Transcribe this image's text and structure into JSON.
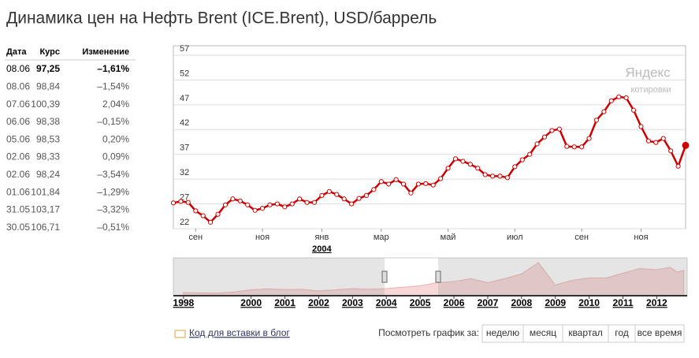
{
  "title": "Динамика цен на Нефть Brent (ICE.Brent), USD/баррель",
  "table": {
    "header": [
      "Дата",
      "Курс",
      "Изменение"
    ],
    "rows": [
      [
        "08.06",
        "97,25",
        "–1,61%"
      ],
      [
        "08.06",
        "98,84",
        "–1,54%"
      ],
      [
        "07.06",
        "100,39",
        "2,04%"
      ],
      [
        "06.06",
        "98,38",
        "–0,15%"
      ],
      [
        "05.06",
        "98,53",
        "0,20%"
      ],
      [
        "02.06",
        "98,33",
        "0,09%"
      ],
      [
        "02.06",
        "98,24",
        "–3,54%"
      ],
      [
        "01.06",
        "101,84",
        "–1,29%"
      ],
      [
        "31.05",
        "103,17",
        "–3,32%"
      ],
      [
        "30.05",
        "106,71",
        "–0,51%"
      ]
    ]
  },
  "logo": {
    "name": "Яндекс",
    "sub": "котировки"
  },
  "chart_data": {
    "type": "line",
    "color": "#cc0000",
    "grid": true,
    "categories": [
      null,
      null,
      null,
      "сен",
      null,
      null,
      null,
      null,
      null,
      null,
      null,
      null,
      "ноя",
      null,
      null,
      null,
      null,
      null,
      null,
      null,
      "янв",
      null,
      null,
      null,
      null,
      null,
      null,
      null,
      "мар",
      null,
      null,
      null,
      null,
      null,
      null,
      null,
      null,
      "май",
      null,
      null,
      null,
      null,
      null,
      null,
      null,
      null,
      "июл",
      null,
      null,
      null,
      null,
      null,
      null,
      null,
      null,
      "сен",
      null,
      null,
      null,
      null,
      null,
      null,
      null,
      "ноя",
      null,
      null,
      null,
      null,
      null,
      null
    ],
    "values": [
      27.2,
      27.5,
      27.3,
      25.6,
      24.6,
      23.3,
      24.9,
      26.8,
      28.0,
      27.6,
      26.8,
      25.7,
      26.1,
      26.8,
      27.0,
      26.4,
      27.0,
      28.0,
      27.3,
      27.3,
      28.7,
      29.5,
      28.9,
      28.0,
      27.0,
      28.1,
      28.7,
      29.9,
      31.5,
      31.0,
      31.9,
      31.0,
      29.2,
      31.0,
      31.1,
      30.8,
      32.1,
      34.2,
      36.1,
      35.6,
      35.0,
      34.2,
      32.9,
      32.6,
      32.6,
      32.3,
      34.5,
      35.9,
      37.0,
      39.1,
      40.5,
      41.8,
      42.1,
      38.6,
      38.5,
      38.5,
      40.2,
      43.9,
      45.6,
      47.8,
      48.6,
      48.4,
      45.9,
      42.6,
      39.7,
      39.4,
      40.2,
      37.7,
      34.6,
      38.8
    ],
    "ylim": [
      22,
      57
    ],
    "yticks": [
      22,
      27,
      32,
      37,
      42,
      47,
      52,
      57
    ],
    "year_label": "2004"
  },
  "navigator": {
    "type": "area",
    "color": "#f0b0b0",
    "x": [
      1998,
      1998.5,
      1999,
      1999.5,
      2000,
      2000.5,
      2001,
      2001.5,
      2002,
      2002.5,
      2003,
      2003.5,
      2004,
      2004.5,
      2005,
      2005.5,
      2006,
      2006.5,
      2007,
      2007.5,
      2008,
      2008.5,
      2009,
      2009.5,
      2010,
      2010.5,
      2011,
      2011.5,
      2012,
      2012.4,
      2012.6,
      2012.8
    ],
    "values": [
      13,
      12,
      11,
      16,
      25,
      29,
      26,
      27,
      20,
      25,
      30,
      27,
      30,
      36,
      42,
      55,
      60,
      72,
      55,
      72,
      92,
      140,
      45,
      65,
      75,
      75,
      95,
      115,
      110,
      120,
      100,
      108
    ],
    "xlim": [
      1997.7,
      2012.9
    ],
    "ylim": [
      0,
      160
    ],
    "xticks": [
      1998,
      2000,
      2001,
      2002,
      2003,
      2004,
      2005,
      2006,
      2007,
      2008,
      2009,
      2010,
      2011,
      2012
    ]
  },
  "footer": {
    "embed": "Код для вставки в блог",
    "period_label": "Посмотреть график за:",
    "periods": [
      "неделю",
      "месяц",
      "квартал",
      "год",
      "все время"
    ]
  }
}
